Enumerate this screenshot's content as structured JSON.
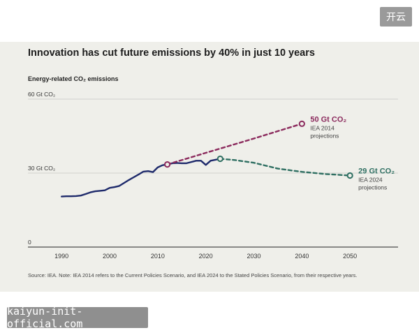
{
  "header": {
    "button_label": "开云"
  },
  "footer": {
    "watermark": "kaiyun-init-official.com"
  },
  "chart_data": {
    "type": "line",
    "title": "Innovation has cut future emissions by 40% in just 10 years",
    "ylabel": "Energy-related CO₂ emissions",
    "xlabel": "",
    "source": "Source: IEA. Note: IEA 2014 refers to the Current Policies Scenario, and IEA 2024 to the Stated Policies Scenario, from their respective years.",
    "xlim": [
      1983,
      2060
    ],
    "ylim": [
      0,
      60
    ],
    "x_ticks": [
      1990,
      2000,
      2010,
      2020,
      2030,
      2040,
      2050
    ],
    "y_ticks": [
      {
        "value": 0,
        "label": "0"
      },
      {
        "value": 30,
        "label": "30 Gt CO₂"
      },
      {
        "value": 60,
        "label": "60 Gt CO₂"
      }
    ],
    "grid": "horizontal",
    "colors": {
      "historical": "#1e2a6b",
      "iea2014": "#8b2a5d",
      "iea2024": "#2f6f62",
      "grid": "#c9c9c4",
      "axis": "#222222"
    },
    "series": [
      {
        "style": "solid",
        "x": [
          1990,
          1991,
          1992,
          1993,
          1994,
          1995,
          1996,
          1997,
          1998,
          1999,
          2000,
          2001,
          2002,
          2003,
          2004,
          2005,
          2006,
          2007,
          2008,
          2009,
          2010,
          2011,
          2012,
          2013,
          2014,
          2015,
          2016,
          2017,
          2018,
          2019,
          2020,
          2021,
          2022,
          2023
        ],
        "y": [
          20.5,
          20.6,
          20.6,
          20.7,
          20.9,
          21.5,
          22.2,
          22.6,
          22.8,
          23.0,
          24.0,
          24.3,
          24.8,
          26.0,
          27.2,
          28.3,
          29.4,
          30.6,
          30.8,
          30.4,
          32.3,
          33.2,
          33.5,
          34.0,
          34.1,
          34.0,
          34.0,
          34.5,
          35.0,
          35.0,
          33.3,
          35.0,
          35.4,
          35.8
        ]
      },
      {
        "name": "IEA 2014 projections",
        "style": "dashed",
        "x": [
          2012,
          2020,
          2030,
          2040
        ],
        "y": [
          33.5,
          38.2,
          44.0,
          50.0
        ],
        "end_label": "50 Gt CO₂",
        "note_line1": "IEA 2014",
        "note_line2": "projections"
      },
      {
        "name": "IEA 2024 projections",
        "style": "dashed",
        "x": [
          2023,
          2026,
          2030,
          2035,
          2040,
          2045,
          2050
        ],
        "y": [
          35.8,
          35.3,
          34.2,
          31.8,
          30.5,
          29.6,
          29.0
        ],
        "end_label": "29 Gt CO₂",
        "note_line1": "IEA 2024",
        "note_line2": "projections"
      }
    ]
  }
}
